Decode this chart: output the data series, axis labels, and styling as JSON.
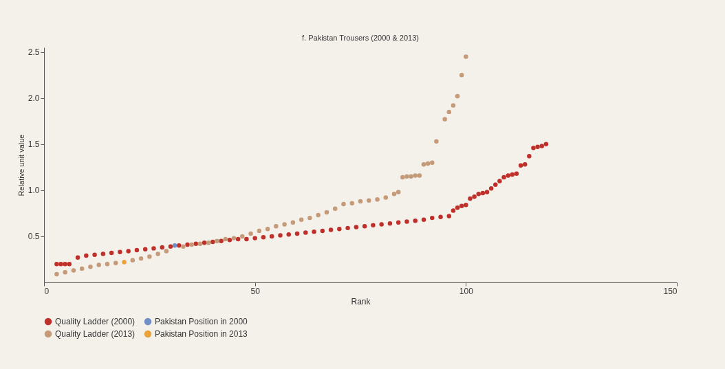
{
  "chart_data": {
    "type": "scatter",
    "title": "f. Pakistan Trousers (2000 & 2013)",
    "xlabel": "Rank",
    "ylabel": "Relative unit value",
    "xlim": [
      0,
      150
    ],
    "xticks": [
      0,
      50,
      100,
      150
    ],
    "ylim": [
      0,
      2.55
    ],
    "yticks": [
      0.5,
      {
        "value": 1,
        "label": "1.0"
      },
      1.5,
      {
        "value": 2,
        "label": "2.0"
      },
      2.5
    ],
    "grid": false,
    "legend": "bottom",
    "marker": "circle",
    "series": [
      {
        "name": "Quality Ladder (2000)",
        "color": "#c0302a",
        "x": [
          3,
          4,
          5,
          6,
          8,
          10,
          12,
          14,
          16,
          18,
          20,
          22,
          24,
          26,
          28,
          30,
          32,
          34,
          36,
          38,
          40,
          42,
          44,
          46,
          48,
          50,
          52,
          54,
          56,
          58,
          60,
          62,
          64,
          66,
          68,
          70,
          72,
          74,
          76,
          78,
          80,
          82,
          84,
          86,
          88,
          90,
          92,
          94,
          96,
          97,
          98,
          99,
          100,
          101,
          102,
          103,
          104,
          105,
          106,
          107,
          108,
          109,
          110,
          111,
          112,
          113,
          114,
          115,
          116,
          117,
          118,
          119
        ],
        "values": [
          0.2,
          0.2,
          0.2,
          0.2,
          0.27,
          0.29,
          0.3,
          0.31,
          0.32,
          0.33,
          0.34,
          0.35,
          0.36,
          0.37,
          0.38,
          0.39,
          0.4,
          0.41,
          0.42,
          0.43,
          0.44,
          0.45,
          0.46,
          0.47,
          0.47,
          0.48,
          0.49,
          0.5,
          0.51,
          0.52,
          0.53,
          0.54,
          0.55,
          0.56,
          0.57,
          0.58,
          0.59,
          0.6,
          0.61,
          0.62,
          0.63,
          0.64,
          0.65,
          0.66,
          0.67,
          0.68,
          0.7,
          0.71,
          0.72,
          0.78,
          0.81,
          0.83,
          0.84,
          0.91,
          0.93,
          0.96,
          0.97,
          0.98,
          1.02,
          1.06,
          1.1,
          1.14,
          1.16,
          1.17,
          1.18,
          1.27,
          1.28,
          1.37,
          1.46,
          1.47,
          1.48,
          1.5
        ]
      },
      {
        "name": "Pakistan Position in 2000",
        "color": "#6f8fc8",
        "x": [
          31
        ],
        "values": [
          0.4
        ]
      },
      {
        "name": "Quality Ladder (2013)",
        "color": "#c49a78",
        "x": [
          3,
          5,
          7,
          9,
          11,
          13,
          15,
          17,
          21,
          23,
          25,
          27,
          29,
          33,
          35,
          37,
          39,
          41,
          43,
          45,
          47,
          49,
          51,
          53,
          55,
          57,
          59,
          61,
          63,
          65,
          67,
          69,
          71,
          73,
          75,
          77,
          79,
          81,
          83,
          84,
          85,
          86,
          87,
          88,
          89,
          90,
          91,
          92,
          93,
          95,
          96,
          97,
          98,
          99,
          100
        ],
        "values": [
          0.09,
          0.11,
          0.13,
          0.15,
          0.17,
          0.19,
          0.2,
          0.21,
          0.24,
          0.26,
          0.28,
          0.31,
          0.34,
          0.39,
          0.41,
          0.42,
          0.43,
          0.45,
          0.47,
          0.48,
          0.5,
          0.53,
          0.56,
          0.58,
          0.61,
          0.63,
          0.65,
          0.68,
          0.7,
          0.73,
          0.76,
          0.8,
          0.85,
          0.86,
          0.88,
          0.89,
          0.9,
          0.92,
          0.96,
          0.98,
          1.14,
          1.15,
          1.15,
          1.16,
          1.16,
          1.28,
          1.29,
          1.3,
          1.53,
          1.77,
          1.85,
          1.92,
          2.02,
          2.25,
          2.45
        ]
      },
      {
        "name": "Pakistan Position in 2013",
        "color": "#e8a33c",
        "x": [
          19
        ],
        "values": [
          0.22
        ]
      }
    ]
  }
}
